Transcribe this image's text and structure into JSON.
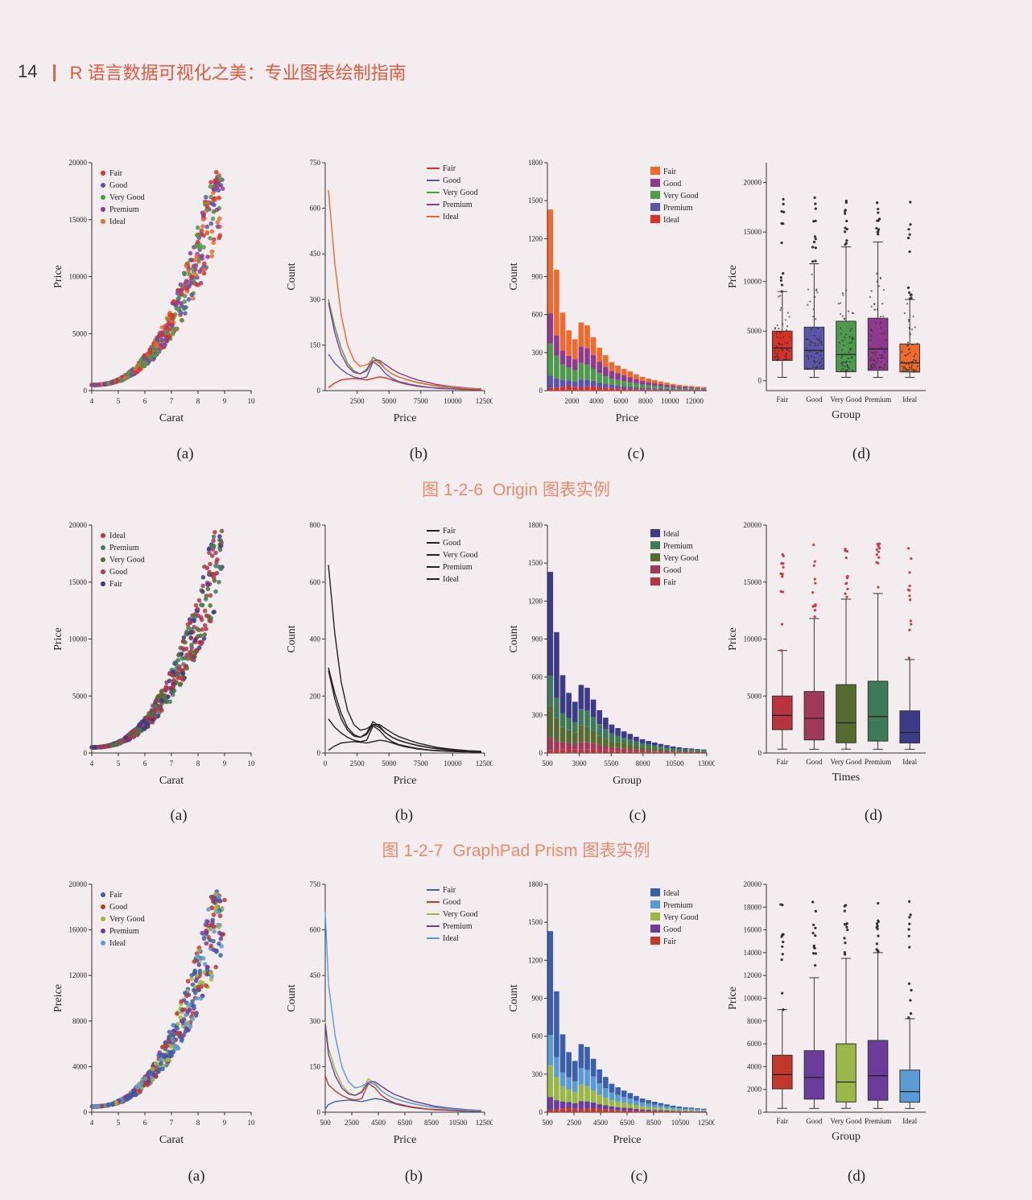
{
  "header": {
    "page_number": "14",
    "separator": "|",
    "book_title": "R 语言数据可视化之美：专业图表绘制指南"
  },
  "figures": [
    {
      "fig_label": "图 1-2-6",
      "fig_title": "Origin 图表实例"
    },
    {
      "fig_label": "图 1-2-7",
      "fig_title": "GraphPad Prism 图表实例"
    }
  ],
  "panel_labels": [
    "(a)",
    "(b)",
    "(c)",
    "(d)"
  ],
  "colors": {
    "origin": [
      "#d9312a",
      "#5b55a8",
      "#4d9a4d",
      "#8e3b8e",
      "#ef6a2c"
    ],
    "prism": [
      "#b8343f",
      "#3e7a5a",
      "#556b2f",
      "#a03a5a",
      "#3d3b86"
    ],
    "excel": [
      "#3b5fa8",
      "#c0392b",
      "#9ab847",
      "#6a3d9a",
      "#5b9bd5"
    ]
  },
  "chart_data": [
    {
      "id": "r1a",
      "type": "scatter",
      "xlabel": "Carat",
      "ylabel": "Price",
      "xlim": [
        4,
        10
      ],
      "ylim": [
        0,
        20000
      ],
      "xticks": [
        "4",
        "5",
        "6",
        "7",
        "8",
        "9",
        "10"
      ],
      "yticks": [
        "0",
        "5000",
        "10000",
        "15000",
        "20000"
      ],
      "legend": [
        "Fair",
        "Good",
        "Very Good",
        "Premium",
        "Ideal"
      ],
      "legend_position": "top-left"
    },
    {
      "id": "r1b",
      "type": "line",
      "xlabel": "Price",
      "ylabel": "Count",
      "xlim": [
        0,
        12500
      ],
      "ylim": [
        0,
        750
      ],
      "xticks": [
        "2500",
        "5000",
        "7500",
        "10000",
        "12500"
      ],
      "yticks": [
        "0",
        "150",
        "300",
        "450",
        "600",
        "750"
      ],
      "legend": [
        "Fair",
        "Good",
        "Very Good",
        "Premium",
        "Ideal"
      ],
      "legend_position": "top-right",
      "x": [
        250,
        750,
        1250,
        1750,
        2250,
        2750,
        3250,
        3750,
        4250,
        4750,
        5250,
        5750,
        6250,
        6750,
        7250,
        7750,
        8250,
        8750,
        9250,
        9750,
        10250,
        10750,
        11250,
        11750,
        12250
      ],
      "series": [
        {
          "name": "Fair",
          "values": [
            10,
            25,
            35,
            38,
            40,
            38,
            35,
            40,
            45,
            42,
            35,
            28,
            22,
            18,
            14,
            12,
            10,
            8,
            7,
            6,
            5,
            4,
            4,
            3,
            3
          ]
        },
        {
          "name": "Good",
          "values": [
            120,
            90,
            70,
            55,
            45,
            40,
            45,
            95,
            80,
            55,
            40,
            30,
            25,
            20,
            16,
            13,
            10,
            9,
            8,
            7,
            6,
            5,
            5,
            4,
            4
          ]
        },
        {
          "name": "Very Good",
          "values": [
            300,
            210,
            140,
            90,
            65,
            55,
            70,
            110,
            95,
            70,
            55,
            45,
            38,
            32,
            26,
            22,
            18,
            15,
            13,
            11,
            9,
            8,
            7,
            6,
            5
          ]
        },
        {
          "name": "Premium",
          "values": [
            290,
            190,
            120,
            80,
            60,
            55,
            65,
            100,
            100,
            85,
            70,
            58,
            50,
            42,
            35,
            30,
            25,
            20,
            17,
            14,
            12,
            10,
            8,
            7,
            6
          ]
        },
        {
          "name": "Ideal",
          "values": [
            660,
            420,
            250,
            150,
            100,
            80,
            85,
            100,
            90,
            70,
            55,
            45,
            38,
            32,
            27,
            23,
            19,
            16,
            14,
            12,
            10,
            8,
            7,
            6,
            5
          ]
        }
      ]
    },
    {
      "id": "r1c",
      "type": "bar",
      "xlabel": "Price",
      "ylabel": "Count",
      "xlim": [
        0,
        13000
      ],
      "ylim": [
        0,
        1800
      ],
      "xticks": [
        "2000",
        "4000",
        "6000",
        "8000",
        "10000",
        "12000"
      ],
      "yticks": [
        "0",
        "300",
        "600",
        "900",
        "1200",
        "1500",
        "1800"
      ],
      "legend": [
        "Fair",
        "Good",
        "Very Good",
        "Premium",
        "Ideal"
      ],
      "legend_position": "top-right",
      "categories": [
        "500",
        "1000",
        "1500",
        "2000",
        "2500",
        "3000",
        "3500",
        "4000",
        "4500",
        "5000",
        "5500",
        "6000",
        "6500",
        "7000",
        "7500",
        "8000",
        "8500",
        "9000",
        "9500",
        "10000",
        "10500",
        "11000",
        "11500",
        "12000",
        "12500",
        "13000"
      ],
      "series": [
        {
          "name": "Fair",
          "values": [
            20,
            25,
            30,
            35,
            30,
            28,
            30,
            32,
            28,
            24,
            20,
            18,
            16,
            14,
            12,
            10,
            9,
            8,
            7,
            6,
            5,
            5,
            4,
            4,
            3,
            3
          ]
        },
        {
          "name": "Good",
          "values": [
            100,
            70,
            55,
            45,
            40,
            60,
            55,
            45,
            35,
            30,
            25,
            22,
            20,
            18,
            15,
            12,
            11,
            10,
            9,
            8,
            7,
            6,
            5,
            5,
            4,
            4
          ]
        },
        {
          "name": "Very Good",
          "values": [
            250,
            180,
            120,
            100,
            90,
            130,
            120,
            95,
            75,
            60,
            50,
            45,
            40,
            35,
            30,
            25,
            22,
            20,
            18,
            15,
            13,
            11,
            10,
            9,
            8,
            7
          ]
        },
        {
          "name": "Premium",
          "values": [
            240,
            160,
            110,
            95,
            85,
            130,
            130,
            110,
            90,
            75,
            60,
            52,
            45,
            40,
            34,
            30,
            26,
            22,
            18,
            16,
            13,
            11,
            10,
            9,
            8,
            7
          ]
        },
        {
          "name": "Ideal",
          "values": [
            820,
            520,
            300,
            200,
            160,
            190,
            180,
            140,
            110,
            90,
            70,
            60,
            50,
            44,
            37,
            32,
            27,
            23,
            20,
            17,
            14,
            12,
            10,
            9,
            8,
            7
          ]
        }
      ]
    },
    {
      "id": "r1d",
      "type": "box",
      "xlabel": "Group",
      "ylabel": "Price",
      "ylim": [
        -1000,
        22000
      ],
      "yticks": [
        "0",
        "5000",
        "10000",
        "15000",
        "20000"
      ],
      "categories": [
        "Fair",
        "Good",
        "Very Good",
        "Premium",
        "Ideal"
      ],
      "boxes": [
        {
          "q1": 2050,
          "median": 3300,
          "q3": 5000,
          "min": 340,
          "max": 9000
        },
        {
          "q1": 1150,
          "median": 3050,
          "q3": 5400,
          "min": 330,
          "max": 11800
        },
        {
          "q1": 900,
          "median": 2650,
          "q3": 6000,
          "min": 340,
          "max": 13500
        },
        {
          "q1": 1050,
          "median": 3200,
          "q3": 6300,
          "min": 330,
          "max": 14000
        },
        {
          "q1": 880,
          "median": 1800,
          "q3": 3700,
          "min": 330,
          "max": 8200
        }
      ]
    },
    {
      "id": "r2a",
      "type": "scatter",
      "xlabel": "Carat",
      "ylabel": "Price",
      "xlim": [
        4,
        10
      ],
      "ylim": [
        0,
        20000
      ],
      "xticks": [
        "4",
        "5",
        "6",
        "7",
        "8",
        "9",
        "10"
      ],
      "yticks": [
        "0",
        "5000",
        "10000",
        "15000",
        "20000"
      ],
      "legend": [
        "Ideal",
        "Premium",
        "Very Good",
        "Good",
        "Fair"
      ],
      "legend_position": "top-left"
    },
    {
      "id": "r2b",
      "type": "line",
      "xlabel": "Price",
      "ylabel": "Count",
      "xlim": [
        0,
        12500
      ],
      "ylim": [
        0,
        800
      ],
      "xticks": [
        "0",
        "2500",
        "5000",
        "7500",
        "10000",
        "12500"
      ],
      "yticks": [
        "0",
        "200",
        "400",
        "600",
        "800"
      ],
      "legend": [
        "Fair",
        "Good",
        "Very Good",
        "Premium",
        "Ideal"
      ],
      "legend_position": "top-right"
    },
    {
      "id": "r2c",
      "type": "bar",
      "xlabel": "Group",
      "ylabel": "Count",
      "xlim": [
        500,
        13000
      ],
      "ylim": [
        0,
        1800
      ],
      "xticks": [
        "500",
        "3000",
        "5500",
        "8000",
        "10500",
        "13000"
      ],
      "yticks": [
        "0",
        "300",
        "600",
        "900",
        "1200",
        "1500",
        "1800"
      ],
      "legend": [
        "Ideal",
        "Premium",
        "Very Good",
        "Good",
        "Fair"
      ],
      "legend_position": "top-right"
    },
    {
      "id": "r2d",
      "type": "box",
      "xlabel": "Times",
      "ylabel": "Price",
      "ylim": [
        0,
        20000
      ],
      "yticks": [
        "0",
        "5000",
        "10000",
        "15000",
        "20000"
      ],
      "categories": [
        "Fair",
        "Good",
        "Very Good",
        "Premium",
        "Ideal"
      ]
    },
    {
      "id": "r3a",
      "type": "scatter",
      "xlabel": "Carat",
      "ylabel": "Preice",
      "xlim": [
        4,
        10
      ],
      "ylim": [
        0,
        20000
      ],
      "xticks": [
        "4",
        "5",
        "6",
        "7",
        "8",
        "9",
        "10"
      ],
      "yticks": [
        "0",
        "4000",
        "8000",
        "12000",
        "16000",
        "20000"
      ],
      "legend": [
        "Fair",
        "Good",
        "Very Good",
        "Premium",
        "Ideal"
      ],
      "legend_position": "top-left"
    },
    {
      "id": "r3b",
      "type": "line",
      "xlabel": "Price",
      "ylabel": "Count",
      "xlim": [
        500,
        12500
      ],
      "ylim": [
        0,
        750
      ],
      "xticks": [
        "500",
        "2500",
        "4500",
        "6500",
        "8500",
        "10500",
        "12500"
      ],
      "yticks": [
        "0",
        "150",
        "300",
        "450",
        "600",
        "750"
      ],
      "legend": [
        "Fair",
        "Good",
        "Very Good",
        "Premium",
        "Ideal"
      ],
      "legend_position": "top-right"
    },
    {
      "id": "r3c",
      "type": "bar",
      "xlabel": "Preice",
      "ylabel": "Count",
      "xlim": [
        500,
        12500
      ],
      "ylim": [
        0,
        1800
      ],
      "xticks": [
        "500",
        "2500",
        "4500",
        "6500",
        "8500",
        "10500",
        "12500"
      ],
      "yticks": [
        "0",
        "300",
        "600",
        "900",
        "1200",
        "1500",
        "1800"
      ],
      "legend": [
        "Ideal",
        "Premium",
        "Very Good",
        "Good",
        "Fair"
      ],
      "legend_position": "top-right"
    },
    {
      "id": "r3d",
      "type": "box",
      "xlabel": "Group",
      "ylabel": "Price",
      "ylim": [
        0,
        20000
      ],
      "yticks": [
        "0",
        "2000",
        "4000",
        "6000",
        "8000",
        "10000",
        "12000",
        "14000",
        "16000",
        "18000",
        "20000"
      ],
      "categories": [
        "Fair",
        "Good",
        "Very Good",
        "Premium",
        "Ideal"
      ]
    }
  ]
}
